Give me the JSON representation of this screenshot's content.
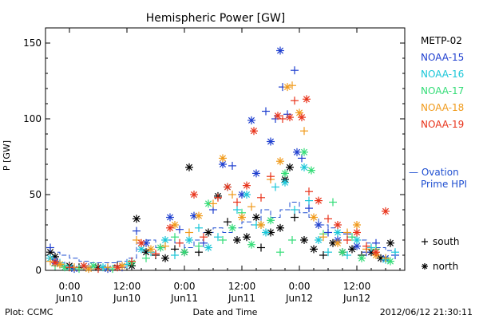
{
  "chart_data": {
    "type": "scatter",
    "title": "Hemispheric Power [GW]",
    "ylabel": "P [GW]",
    "xlabel": "Date and Time",
    "ylim": [
      0,
      160
    ],
    "yticks": [
      0,
      50,
      100,
      150
    ],
    "xlim": [
      -5,
      70
    ],
    "x_unit": "hours since 2012-06-10 00:00 UT",
    "xticks": [
      {
        "x": 0,
        "time": "0:00",
        "date": "Jun10"
      },
      {
        "x": 12,
        "time": "12:00",
        "date": "Jun10"
      },
      {
        "x": 24,
        "time": "0:00",
        "date": "Jun11"
      },
      {
        "x": 36,
        "time": "12:00",
        "date": "Jun11"
      },
      {
        "x": 48,
        "time": "0:00",
        "date": "Jun12"
      },
      {
        "x": 60,
        "time": "12:00",
        "date": "Jun12"
      }
    ],
    "footer_left": "Plot: CCMC",
    "footer_right": "2012/06/12 21:30:11",
    "symbol_legend": [
      {
        "marker": "plus",
        "label": "south"
      },
      {
        "marker": "asterisk",
        "label": "north"
      }
    ],
    "ovation": {
      "label_line1": "— Ovation",
      "label_line2": "Prime HPI",
      "color": "#1f4fd1"
    },
    "series": [
      {
        "name": "METP-02",
        "color": "#000000",
        "points": [
          [
            -4,
            12,
            "asterisk"
          ],
          [
            -3,
            9,
            "asterisk"
          ],
          [
            -2,
            4,
            "plus"
          ],
          [
            0,
            3,
            "asterisk"
          ],
          [
            2,
            2,
            "plus"
          ],
          [
            6,
            2,
            "asterisk"
          ],
          [
            10,
            3,
            "plus"
          ],
          [
            13,
            3,
            "asterisk"
          ],
          [
            14,
            34,
            "asterisk"
          ],
          [
            16,
            12,
            "asterisk"
          ],
          [
            18,
            10,
            "plus"
          ],
          [
            20,
            8,
            "asterisk"
          ],
          [
            22,
            14,
            "plus"
          ],
          [
            24,
            12,
            "asterisk"
          ],
          [
            25,
            68,
            "asterisk"
          ],
          [
            27,
            12,
            "plus"
          ],
          [
            29,
            25,
            "asterisk"
          ],
          [
            31,
            49,
            "asterisk"
          ],
          [
            33,
            32,
            "plus"
          ],
          [
            35,
            20,
            "asterisk"
          ],
          [
            37,
            22,
            "asterisk"
          ],
          [
            39,
            35,
            "asterisk"
          ],
          [
            40,
            15,
            "plus"
          ],
          [
            42,
            25,
            "asterisk"
          ],
          [
            44,
            28,
            "asterisk"
          ],
          [
            45,
            60,
            "asterisk"
          ],
          [
            46,
            68,
            "asterisk"
          ],
          [
            47,
            35,
            "plus"
          ],
          [
            49,
            20,
            "asterisk"
          ],
          [
            51,
            14,
            "asterisk"
          ],
          [
            53,
            10,
            "plus"
          ],
          [
            55,
            18,
            "asterisk"
          ],
          [
            57,
            12,
            "asterisk"
          ],
          [
            59,
            14,
            "asterisk"
          ],
          [
            61,
            10,
            "plus"
          ],
          [
            63,
            12,
            "asterisk"
          ],
          [
            65,
            8,
            "asterisk"
          ],
          [
            67,
            18,
            "asterisk"
          ]
        ]
      },
      {
        "name": "NOAA-15",
        "color": "#1f3fcf",
        "points": [
          [
            -4,
            15,
            "plus"
          ],
          [
            -3,
            6,
            "asterisk"
          ],
          [
            -1,
            3,
            "plus"
          ],
          [
            1,
            1,
            "asterisk"
          ],
          [
            4,
            2,
            "plus"
          ],
          [
            8,
            1,
            "asterisk"
          ],
          [
            11,
            2,
            "plus"
          ],
          [
            14,
            26,
            "plus"
          ],
          [
            16,
            18,
            "asterisk"
          ],
          [
            19,
            15,
            "plus"
          ],
          [
            21,
            35,
            "asterisk"
          ],
          [
            23,
            27,
            "plus"
          ],
          [
            26,
            36,
            "asterisk"
          ],
          [
            28,
            18,
            "plus"
          ],
          [
            30,
            40,
            "plus"
          ],
          [
            32,
            70,
            "asterisk"
          ],
          [
            34,
            69,
            "plus"
          ],
          [
            36,
            50,
            "asterisk"
          ],
          [
            38,
            99,
            "asterisk"
          ],
          [
            39,
            64,
            "asterisk"
          ],
          [
            41,
            105,
            "plus"
          ],
          [
            42,
            85,
            "asterisk"
          ],
          [
            43,
            100,
            "plus"
          ],
          [
            44,
            145,
            "asterisk"
          ],
          [
            44.5,
            121,
            "plus"
          ],
          [
            45.5,
            103,
            "plus"
          ],
          [
            47,
            132,
            "plus"
          ],
          [
            47.5,
            78,
            "asterisk"
          ],
          [
            48.5,
            74,
            "plus"
          ],
          [
            50,
            41,
            "plus"
          ],
          [
            52,
            30,
            "asterisk"
          ],
          [
            54,
            25,
            "plus"
          ],
          [
            56,
            20,
            "asterisk"
          ],
          [
            58,
            24,
            "plus"
          ],
          [
            60,
            16,
            "asterisk"
          ],
          [
            62,
            12,
            "plus"
          ],
          [
            64,
            18,
            "plus"
          ],
          [
            66,
            8,
            "asterisk"
          ],
          [
            68,
            10,
            "plus"
          ]
        ]
      },
      {
        "name": "NOAA-16",
        "color": "#19c6d8",
        "points": [
          [
            -4,
            8,
            "asterisk"
          ],
          [
            -2,
            5,
            "plus"
          ],
          [
            0,
            2,
            "asterisk"
          ],
          [
            3,
            3,
            "plus"
          ],
          [
            7,
            2,
            "asterisk"
          ],
          [
            12,
            4,
            "plus"
          ],
          [
            15,
            14,
            "asterisk"
          ],
          [
            17,
            12,
            "plus"
          ],
          [
            20,
            20,
            "asterisk"
          ],
          [
            22,
            10,
            "plus"
          ],
          [
            25,
            20,
            "asterisk"
          ],
          [
            27,
            28,
            "plus"
          ],
          [
            29,
            15,
            "asterisk"
          ],
          [
            31,
            22,
            "plus"
          ],
          [
            33,
            55,
            "asterisk"
          ],
          [
            35,
            40,
            "plus"
          ],
          [
            37,
            50,
            "asterisk"
          ],
          [
            39,
            30,
            "plus"
          ],
          [
            41,
            25,
            "asterisk"
          ],
          [
            43,
            55,
            "plus"
          ],
          [
            45,
            58,
            "asterisk"
          ],
          [
            47,
            40,
            "plus"
          ],
          [
            49,
            68,
            "asterisk"
          ],
          [
            50,
            46,
            "plus"
          ],
          [
            52,
            20,
            "asterisk"
          ],
          [
            54,
            12,
            "plus"
          ],
          [
            56,
            25,
            "asterisk"
          ],
          [
            58,
            10,
            "plus"
          ],
          [
            60,
            20,
            "asterisk"
          ],
          [
            63,
            15,
            "plus"
          ],
          [
            66,
            7,
            "asterisk"
          ],
          [
            68,
            12,
            "plus"
          ]
        ]
      },
      {
        "name": "NOAA-17",
        "color": "#33dd77",
        "points": [
          [
            -3,
            3,
            "plus"
          ],
          [
            -1,
            2,
            "asterisk"
          ],
          [
            2,
            1,
            "plus"
          ],
          [
            5,
            3,
            "asterisk"
          ],
          [
            9,
            1,
            "plus"
          ],
          [
            13,
            5,
            "asterisk"
          ],
          [
            16,
            8,
            "plus"
          ],
          [
            19,
            15,
            "asterisk"
          ],
          [
            22,
            22,
            "plus"
          ],
          [
            24,
            12,
            "asterisk"
          ],
          [
            27,
            16,
            "plus"
          ],
          [
            29,
            44,
            "asterisk"
          ],
          [
            32,
            20,
            "plus"
          ],
          [
            34,
            28,
            "asterisk"
          ],
          [
            36,
            38,
            "plus"
          ],
          [
            38,
            17,
            "asterisk"
          ],
          [
            40,
            30,
            "plus"
          ],
          [
            42,
            33,
            "asterisk"
          ],
          [
            44,
            12,
            "plus"
          ],
          [
            45,
            64,
            "asterisk"
          ],
          [
            46.5,
            20,
            "plus"
          ],
          [
            49,
            78,
            "asterisk"
          ],
          [
            50.5,
            66,
            "asterisk"
          ],
          [
            53,
            24,
            "plus"
          ],
          [
            55,
            45,
            "plus"
          ],
          [
            57,
            12,
            "asterisk"
          ],
          [
            59,
            22,
            "plus"
          ],
          [
            61,
            8,
            "asterisk"
          ],
          [
            64,
            14,
            "plus"
          ],
          [
            67,
            6,
            "asterisk"
          ]
        ]
      },
      {
        "name": "NOAA-18",
        "color": "#f09a1a",
        "points": [
          [
            -4,
            6,
            "plus"
          ],
          [
            -2,
            4,
            "asterisk"
          ],
          [
            1,
            2,
            "plus"
          ],
          [
            4,
            1,
            "asterisk"
          ],
          [
            8,
            2,
            "plus"
          ],
          [
            11,
            3,
            "asterisk"
          ],
          [
            14,
            20,
            "plus"
          ],
          [
            17,
            14,
            "asterisk"
          ],
          [
            20,
            16,
            "plus"
          ],
          [
            22,
            30,
            "asterisk"
          ],
          [
            25,
            25,
            "plus"
          ],
          [
            27,
            36,
            "asterisk"
          ],
          [
            30,
            44,
            "plus"
          ],
          [
            32,
            74,
            "asterisk"
          ],
          [
            34,
            50,
            "plus"
          ],
          [
            36,
            35,
            "asterisk"
          ],
          [
            38,
            42,
            "plus"
          ],
          [
            40,
            30,
            "asterisk"
          ],
          [
            42,
            60,
            "plus"
          ],
          [
            44,
            72,
            "asterisk"
          ],
          [
            45.5,
            121,
            "asterisk"
          ],
          [
            46.5,
            122,
            "plus"
          ],
          [
            48,
            104,
            "asterisk"
          ],
          [
            49,
            92,
            "plus"
          ],
          [
            51,
            35,
            "asterisk"
          ],
          [
            53,
            22,
            "plus"
          ],
          [
            56,
            18,
            "asterisk"
          ],
          [
            58,
            25,
            "plus"
          ],
          [
            60,
            30,
            "asterisk"
          ],
          [
            62,
            14,
            "plus"
          ],
          [
            64,
            10,
            "asterisk"
          ],
          [
            66,
            8,
            "plus"
          ]
        ]
      },
      {
        "name": "NOAA-19",
        "color": "#e8331a",
        "points": [
          [
            -3,
            5,
            "asterisk"
          ],
          [
            0,
            2,
            "plus"
          ],
          [
            3,
            3,
            "asterisk"
          ],
          [
            6,
            1,
            "plus"
          ],
          [
            10,
            2,
            "asterisk"
          ],
          [
            13,
            6,
            "plus"
          ],
          [
            15,
            18,
            "asterisk"
          ],
          [
            18,
            11,
            "plus"
          ],
          [
            21,
            28,
            "asterisk"
          ],
          [
            23,
            18,
            "plus"
          ],
          [
            26,
            50,
            "asterisk"
          ],
          [
            28,
            22,
            "plus"
          ],
          [
            31,
            48,
            "plus"
          ],
          [
            33,
            55,
            "asterisk"
          ],
          [
            35,
            45,
            "plus"
          ],
          [
            37,
            56,
            "asterisk"
          ],
          [
            38.5,
            92,
            "asterisk"
          ],
          [
            40,
            48,
            "plus"
          ],
          [
            42,
            62,
            "plus"
          ],
          [
            43.5,
            102,
            "asterisk"
          ],
          [
            44.5,
            100,
            "plus"
          ],
          [
            46,
            101,
            "asterisk"
          ],
          [
            47,
            112,
            "plus"
          ],
          [
            48.5,
            101,
            "asterisk"
          ],
          [
            49.5,
            113,
            "asterisk"
          ],
          [
            50,
            52,
            "plus"
          ],
          [
            52,
            46,
            "asterisk"
          ],
          [
            54,
            34,
            "plus"
          ],
          [
            56,
            30,
            "asterisk"
          ],
          [
            58,
            20,
            "plus"
          ],
          [
            60,
            25,
            "asterisk"
          ],
          [
            62,
            16,
            "plus"
          ],
          [
            64,
            12,
            "asterisk"
          ],
          [
            66,
            39,
            "asterisk"
          ]
        ]
      }
    ],
    "ovation_line": [
      [
        -4,
        12
      ],
      [
        -2,
        10
      ],
      [
        0,
        8
      ],
      [
        2,
        6
      ],
      [
        4,
        5
      ],
      [
        6,
        5
      ],
      [
        8,
        5
      ],
      [
        10,
        6
      ],
      [
        12,
        8
      ],
      [
        14,
        18
      ],
      [
        16,
        20
      ],
      [
        18,
        15
      ],
      [
        20,
        20
      ],
      [
        22,
        18
      ],
      [
        24,
        15
      ],
      [
        26,
        20
      ],
      [
        28,
        25
      ],
      [
        30,
        28
      ],
      [
        32,
        25
      ],
      [
        34,
        28
      ],
      [
        36,
        32
      ],
      [
        38,
        30
      ],
      [
        40,
        40
      ],
      [
        42,
        35
      ],
      [
        44,
        40
      ],
      [
        46,
        45
      ],
      [
        48,
        38
      ],
      [
        50,
        35
      ],
      [
        52,
        30
      ],
      [
        54,
        28
      ],
      [
        56,
        25
      ],
      [
        58,
        22
      ],
      [
        60,
        20
      ],
      [
        62,
        18
      ],
      [
        64,
        15
      ],
      [
        66,
        13
      ],
      [
        68,
        12
      ]
    ]
  }
}
